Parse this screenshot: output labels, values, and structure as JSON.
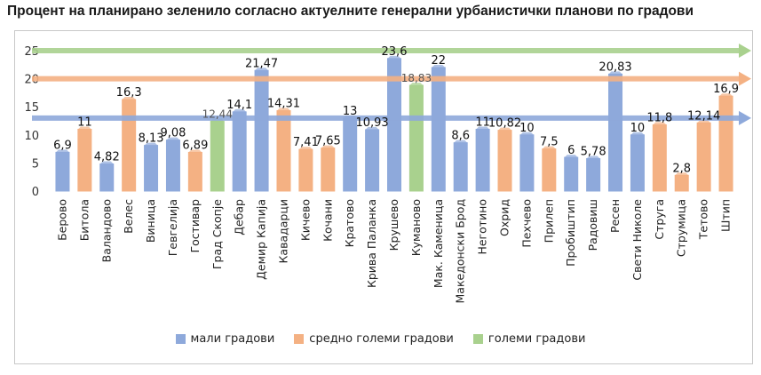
{
  "chart_data": {
    "type": "bar",
    "title": "Процент на планирано зеленило согласно актуелните генерални урбанистички планови по градови",
    "ylim": [
      0,
      25
    ],
    "yticks": [
      0,
      5,
      10,
      15,
      20,
      25
    ],
    "categories": [
      "Берово",
      "Битола",
      "Валандово",
      "Велес",
      "Виница",
      "Гевгелија",
      "Гостивар",
      "Град Скопје",
      "Дебар",
      "Демир Капија",
      "Кавадарци",
      "Кичево",
      "Кочани",
      "Кратово",
      "Крива Паланка",
      "Крушево",
      "Куманово",
      "Мак. Каменица",
      "Македонски Брод",
      "Неготино",
      "Охрид",
      "Пехчево",
      "Прилеп",
      "Пробиштип",
      "Радовиш",
      "Ресен",
      "Свети Николе",
      "Струга",
      "Струмица",
      "Тетово",
      "Штип"
    ],
    "values": [
      6.9,
      11,
      4.82,
      16.3,
      8.13,
      9.08,
      6.89,
      12.44,
      14.1,
      21.47,
      14.31,
      7.41,
      7.65,
      13,
      10.93,
      23.6,
      18.83,
      22,
      8.6,
      11,
      10.82,
      10,
      7.5,
      6,
      5.78,
      20.83,
      10,
      11.8,
      2.8,
      12.14,
      16.9
    ],
    "value_labels": [
      "6,9",
      "11",
      "4,82",
      "16,3",
      "8,13",
      "9,08",
      "6,89",
      "12,44",
      "14,1",
      "21,47",
      "14,31",
      "7,41",
      "7,65",
      "13",
      "10,93",
      "23,6",
      "18,83",
      "22",
      "8,6",
      "11",
      "10,82",
      "10",
      "7,5",
      "6",
      "5,78",
      "20,83",
      "10",
      "11,8",
      "2,8",
      "12,14",
      "16,9"
    ],
    "groups": [
      "small",
      "medium",
      "small",
      "medium",
      "small",
      "small",
      "medium",
      "large",
      "small",
      "small",
      "medium",
      "medium",
      "medium",
      "small",
      "small",
      "small",
      "large",
      "small",
      "small",
      "small",
      "medium",
      "small",
      "medium",
      "small",
      "small",
      "small",
      "small",
      "medium",
      "medium",
      "medium",
      "medium"
    ],
    "series": [
      {
        "key": "small",
        "name": "мали градови",
        "color": "#8ea9db"
      },
      {
        "key": "medium",
        "name": "средно големи градови",
        "color": "#f4b183"
      },
      {
        "key": "large",
        "name": "големи градови",
        "color": "#a9d18e"
      }
    ],
    "reference_lines": [
      {
        "value": 13,
        "color": "#8ea9db"
      },
      {
        "value": 20,
        "color": "#f4b183"
      },
      {
        "value": 25,
        "color": "#a9d18e"
      }
    ],
    "legend_position": "bottom",
    "grid": false
  }
}
